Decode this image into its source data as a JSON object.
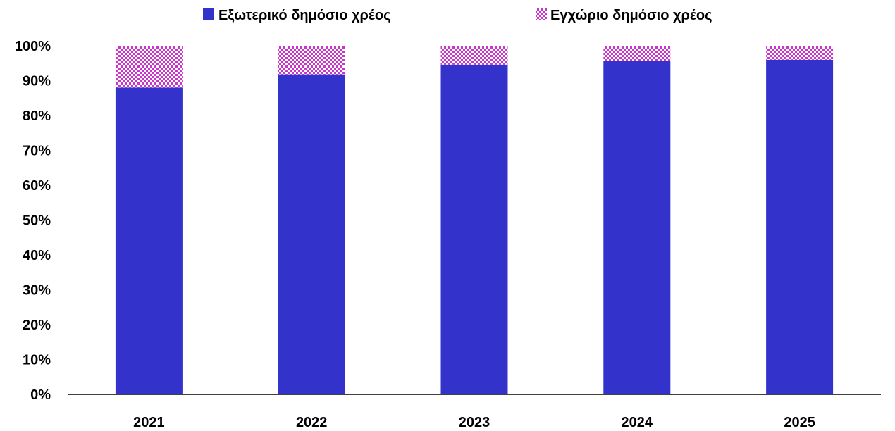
{
  "chart_data": {
    "type": "bar",
    "stacked": true,
    "percent_stacked": true,
    "categories": [
      "2021",
      "2022",
      "2023",
      "2024",
      "2025"
    ],
    "series": [
      {
        "name": "Εξωτερικό δημόσιο χρέος",
        "values": [
          88,
          91.8,
          94.6,
          95.7,
          96
        ],
        "color": "#3333cc",
        "pattern": "solid"
      },
      {
        "name": "Εγχώριο δημόσιο χρέος",
        "values": [
          12,
          8.2,
          5.4,
          4.3,
          4
        ],
        "color": "#cc33cc",
        "pattern": "checker"
      }
    ],
    "ylim": [
      0,
      100
    ],
    "yticks": [
      "0%",
      "10%",
      "20%",
      "30%",
      "40%",
      "50%",
      "60%",
      "70%",
      "80%",
      "90%",
      "100%"
    ],
    "grid": false,
    "legend_position": "top-center"
  }
}
